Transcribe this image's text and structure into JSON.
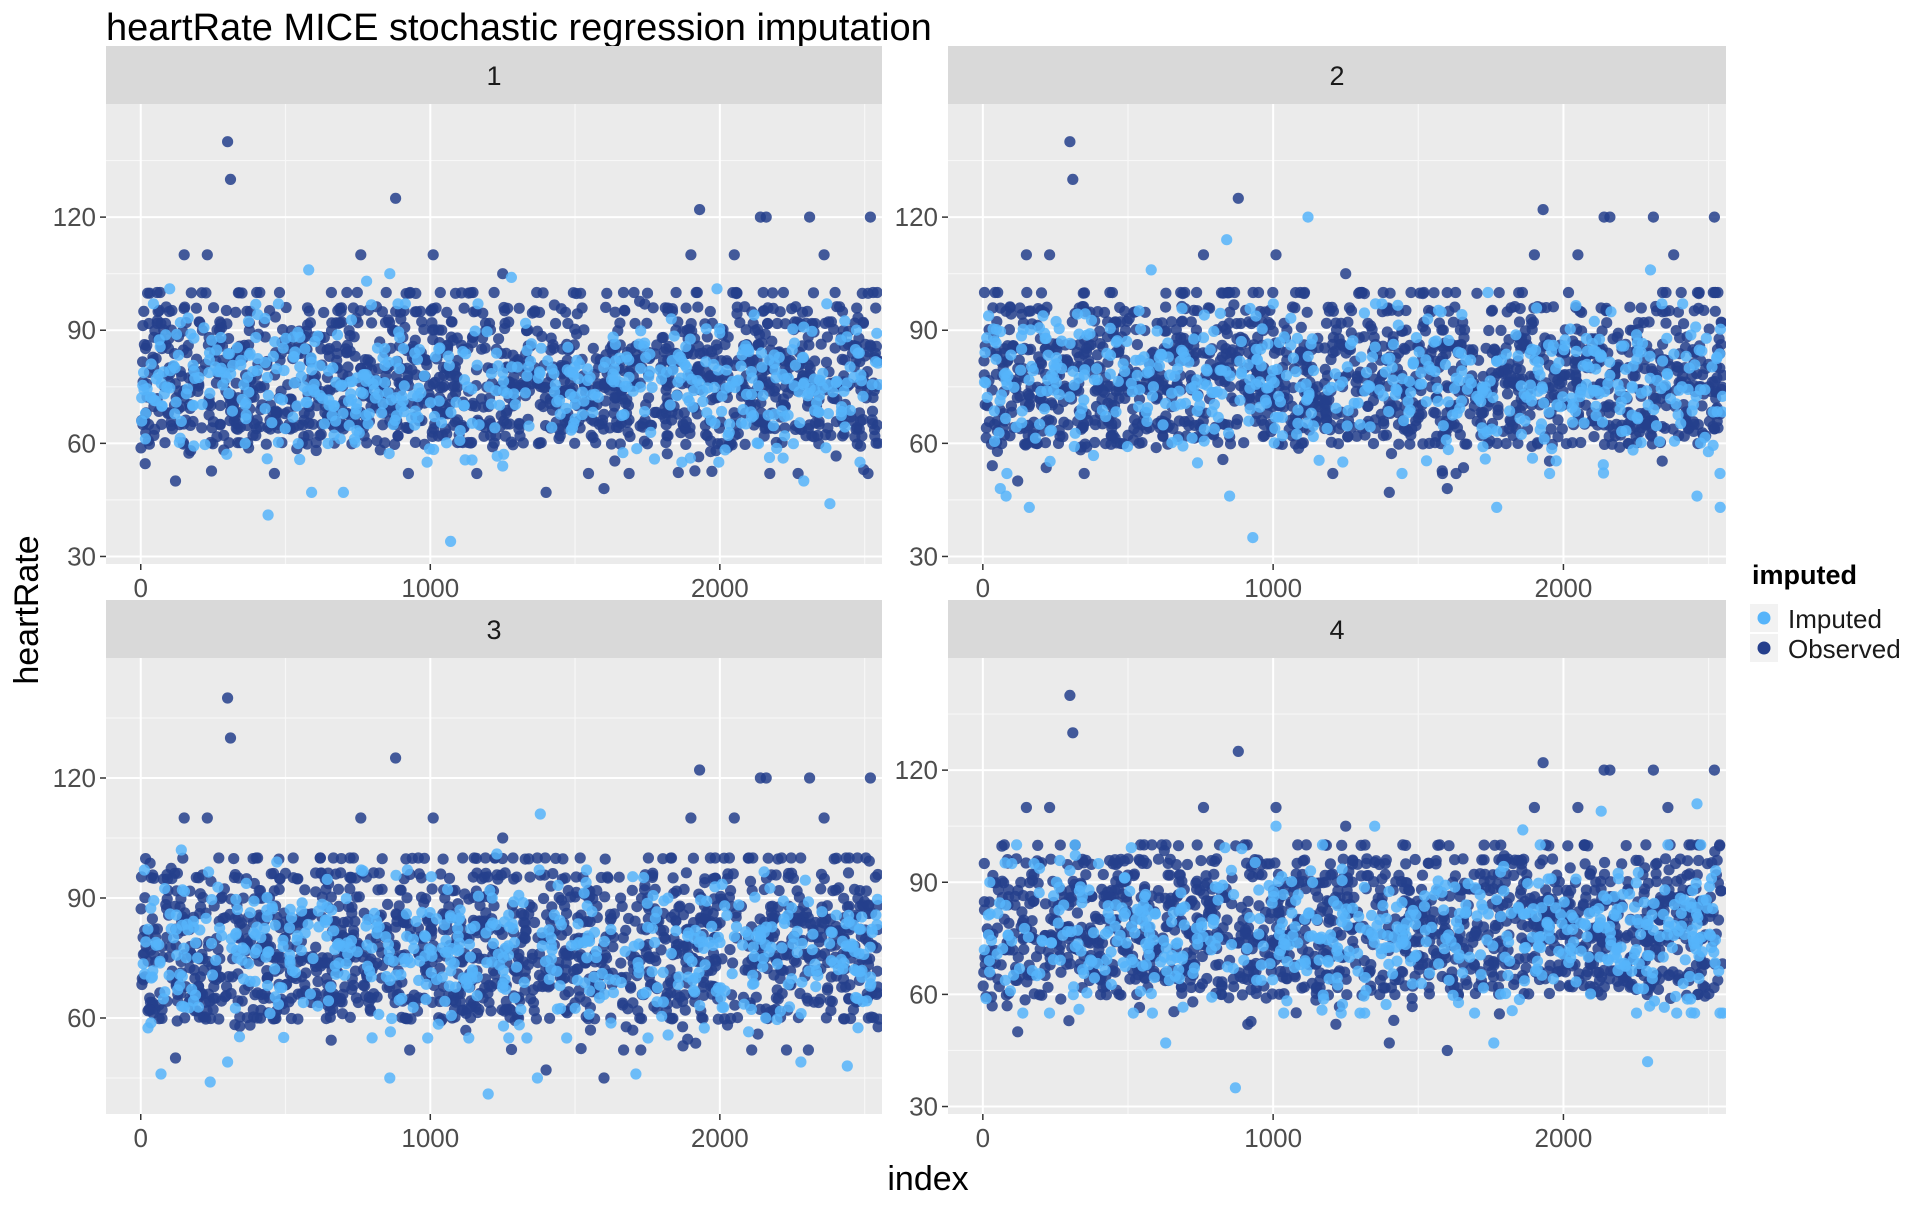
{
  "chart_data": {
    "type": "scatter",
    "title": "heartRate MICE stochastic regression imputation",
    "xlabel": "index",
    "ylabel": "heartRate",
    "legend": {
      "title": "imputed",
      "position": "right",
      "entries": [
        {
          "label": "Imputed",
          "color": "#56b4fa"
        },
        {
          "label": "Observed",
          "color": "#253f8c"
        }
      ]
    },
    "colors": {
      "imputed": "#56b4fa",
      "observed": "#253f8c",
      "panel_bg": "#ebebeb",
      "strip_bg": "#d9d9d9",
      "grid": "#ffffff"
    },
    "xlim": [
      -120,
      2560
    ],
    "x_ticks": [
      0,
      1000,
      2000
    ],
    "x_tick_labels": [
      "0",
      "1000",
      "2000"
    ],
    "grid": true,
    "facets": [
      {
        "label": "1",
        "ylim": [
          28,
          150
        ],
        "y_ticks": [
          30,
          60,
          90,
          120
        ],
        "y_tick_labels": [
          "30",
          "60",
          "90",
          "120"
        ],
        "observed_band": {
          "n_points": 1400,
          "x_range": [
            0,
            2550
          ],
          "y_range": [
            52,
            100
          ]
        },
        "imputed_cloud": {
          "n_points": 520,
          "x_range": [
            0,
            2550
          ],
          "y_range": [
            55,
            97
          ]
        },
        "observed_points": [
          [
            300,
            140
          ],
          [
            310,
            130
          ],
          [
            880,
            125
          ],
          [
            1930,
            122
          ],
          [
            2140,
            120
          ],
          [
            2160,
            120
          ],
          [
            2310,
            120
          ],
          [
            2520,
            120
          ],
          [
            150,
            110
          ],
          [
            230,
            110
          ],
          [
            1010,
            110
          ],
          [
            1900,
            110
          ],
          [
            2050,
            110
          ],
          [
            2360,
            110
          ],
          [
            1250,
            105
          ],
          [
            760,
            110
          ],
          [
            1600,
            48
          ],
          [
            1400,
            47
          ],
          [
            120,
            50
          ]
        ],
        "imputed_points": [
          [
            440,
            41
          ],
          [
            590,
            47
          ],
          [
            700,
            47
          ],
          [
            1070,
            34
          ],
          [
            2380,
            44
          ],
          [
            780,
            103
          ],
          [
            100,
            101
          ],
          [
            580,
            106
          ],
          [
            860,
            105
          ],
          [
            1280,
            104
          ],
          [
            1990,
            101
          ],
          [
            2290,
            50
          ],
          [
            1250,
            54
          ]
        ]
      },
      {
        "label": "2",
        "ylim": [
          28,
          150
        ],
        "y_ticks": [
          30,
          60,
          90,
          120
        ],
        "y_tick_labels": [
          "30",
          "60",
          "90",
          "120"
        ],
        "observed_band": {
          "n_points": 1400,
          "x_range": [
            0,
            2550
          ],
          "y_range": [
            52,
            100
          ]
        },
        "imputed_cloud": {
          "n_points": 520,
          "x_range": [
            0,
            2550
          ],
          "y_range": [
            52,
            97
          ]
        },
        "observed_points": [
          [
            300,
            140
          ],
          [
            310,
            130
          ],
          [
            880,
            125
          ],
          [
            1930,
            122
          ],
          [
            2140,
            120
          ],
          [
            2160,
            120
          ],
          [
            2310,
            120
          ],
          [
            2520,
            120
          ],
          [
            150,
            110
          ],
          [
            230,
            110
          ],
          [
            1010,
            110
          ],
          [
            1900,
            110
          ],
          [
            2050,
            110
          ],
          [
            2380,
            110
          ],
          [
            1250,
            105
          ],
          [
            760,
            110
          ],
          [
            1600,
            48
          ],
          [
            1400,
            47
          ],
          [
            120,
            50
          ]
        ],
        "imputed_points": [
          [
            930,
            35
          ],
          [
            160,
            43
          ],
          [
            2540,
            43
          ],
          [
            1770,
            43
          ],
          [
            80,
            46
          ],
          [
            2460,
            46
          ],
          [
            850,
            46
          ],
          [
            1120,
            120
          ],
          [
            840,
            114
          ],
          [
            2300,
            106
          ],
          [
            580,
            106
          ],
          [
            1740,
            100
          ],
          [
            60,
            48
          ]
        ]
      },
      {
        "label": "3",
        "ylim": [
          36,
          150
        ],
        "y_ticks": [
          60,
          90,
          120
        ],
        "y_tick_labels": [
          "60",
          "90",
          "120"
        ],
        "observed_band": {
          "n_points": 1400,
          "x_range": [
            0,
            2550
          ],
          "y_range": [
            52,
            100
          ]
        },
        "imputed_cloud": {
          "n_points": 520,
          "x_range": [
            0,
            2550
          ],
          "y_range": [
            55,
            97
          ]
        },
        "observed_points": [
          [
            300,
            140
          ],
          [
            310,
            130
          ],
          [
            880,
            125
          ],
          [
            1930,
            122
          ],
          [
            2140,
            120
          ],
          [
            2160,
            120
          ],
          [
            2310,
            120
          ],
          [
            2520,
            120
          ],
          [
            150,
            110
          ],
          [
            230,
            110
          ],
          [
            1010,
            110
          ],
          [
            1900,
            110
          ],
          [
            2050,
            110
          ],
          [
            2360,
            110
          ],
          [
            1250,
            105
          ],
          [
            760,
            110
          ],
          [
            1600,
            45
          ],
          [
            1400,
            47
          ],
          [
            120,
            50
          ]
        ],
        "imputed_points": [
          [
            1200,
            41
          ],
          [
            240,
            44
          ],
          [
            860,
            45
          ],
          [
            1370,
            45
          ],
          [
            70,
            46
          ],
          [
            1710,
            46
          ],
          [
            2440,
            48
          ],
          [
            2280,
            49
          ],
          [
            300,
            49
          ],
          [
            1380,
            111
          ],
          [
            140,
            102
          ],
          [
            470,
            99
          ],
          [
            1230,
            101
          ]
        ]
      },
      {
        "label": "4",
        "ylim": [
          28,
          150
        ],
        "y_ticks": [
          30,
          60,
          90,
          120
        ],
        "y_tick_labels": [
          "30",
          "60",
          "90",
          "120"
        ],
        "observed_band": {
          "n_points": 1400,
          "x_range": [
            0,
            2550
          ],
          "y_range": [
            52,
            100
          ]
        },
        "imputed_cloud": {
          "n_points": 560,
          "x_range": [
            0,
            2550
          ],
          "y_range": [
            55,
            100
          ]
        },
        "observed_points": [
          [
            300,
            140
          ],
          [
            310,
            130
          ],
          [
            880,
            125
          ],
          [
            1930,
            122
          ],
          [
            2140,
            120
          ],
          [
            2160,
            120
          ],
          [
            2310,
            120
          ],
          [
            2520,
            120
          ],
          [
            150,
            110
          ],
          [
            230,
            110
          ],
          [
            1010,
            110
          ],
          [
            1900,
            110
          ],
          [
            2050,
            110
          ],
          [
            2360,
            110
          ],
          [
            1250,
            105
          ],
          [
            760,
            110
          ],
          [
            1600,
            45
          ],
          [
            1400,
            47
          ],
          [
            120,
            50
          ]
        ],
        "imputed_points": [
          [
            870,
            35
          ],
          [
            2290,
            42
          ],
          [
            630,
            47
          ],
          [
            1760,
            47
          ],
          [
            2460,
            111
          ],
          [
            1010,
            105
          ],
          [
            1350,
            105
          ],
          [
            2130,
            109
          ],
          [
            1860,
            104
          ],
          [
            2360,
            100
          ],
          [
            1920,
            100
          ],
          [
            100,
            95
          ],
          [
            1170,
            100
          ]
        ]
      }
    ]
  }
}
